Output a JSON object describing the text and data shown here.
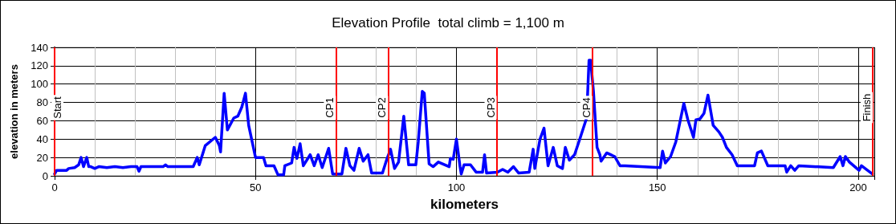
{
  "chart_data": {
    "type": "line",
    "title": "Elevation Profile  total climb = 1,100 m",
    "xlabel": "kilometers",
    "ylabel": "elevation in meters",
    "xlim": [
      0,
      204
    ],
    "xticks": [
      0,
      50,
      100,
      150,
      200
    ],
    "ylim": [
      0,
      140
    ],
    "yticks": [
      0,
      20,
      40,
      60,
      80,
      100,
      120,
      140
    ],
    "grid": true,
    "marker": "none",
    "line_style": "solid",
    "series": [
      {
        "color": "#0000ff",
        "x": [
          0,
          0.5,
          3,
          3.5,
          5,
          6,
          6.6,
          7.2,
          8,
          8.5,
          9,
          10,
          11,
          13,
          15,
          17,
          19,
          20.5,
          21,
          21.5,
          27,
          27.6,
          28.2,
          34.5,
          35.5,
          36,
          37.5,
          40,
          41,
          41.3,
          42.2,
          43,
          44.6,
          45.6,
          46.6,
          47.5,
          48.3,
          50,
          52,
          52.6,
          54.6,
          55.6,
          57,
          57.3,
          59,
          59.6,
          60.3,
          61.1,
          61.9,
          63.6,
          64.6,
          65.6,
          66.6,
          68.2,
          69.2,
          71.5,
          72.5,
          73.5,
          74.5,
          75.8,
          76.8,
          78,
          78.9,
          81.6,
          82.6,
          83.6,
          84.6,
          85.6,
          86.9,
          88.1,
          89.9,
          90.5,
          91.5,
          92,
          93.2,
          94.2,
          95.5,
          98.2,
          98.5,
          99.2,
          100,
          100.9,
          101.2,
          101.9,
          103.5,
          104.9,
          106.5,
          107,
          107.5,
          110.2,
          111.5,
          112.8,
          114.2,
          115.5,
          118.1,
          119.1,
          119.5,
          120.8,
          121.8,
          122.8,
          124.1,
          125.1,
          126.4,
          127.1,
          128.1,
          129.4,
          130.7,
          132.4,
          133,
          133.4,
          134.1,
          135,
          135.7,
          136,
          137.4,
          139.4,
          140.7,
          142,
          150.7,
          151.3,
          152,
          153.3,
          154.6,
          156.6,
          157.6,
          159,
          159.6,
          160.6,
          161.6,
          162.6,
          163.9,
          165.3,
          166.2,
          167.2,
          168.6,
          169.9,
          174.2,
          174.9,
          175.9,
          177.5,
          181.8,
          182.2,
          183.2,
          184.2,
          185.2,
          193.8,
          195.5,
          196.2,
          196.8,
          197.8,
          200.2,
          200.8,
          203.5
        ],
        "values": [
          2,
          6,
          6,
          8,
          9,
          12,
          20,
          10,
          20,
          10,
          10,
          8,
          10,
          9,
          10,
          9,
          10,
          10,
          5,
          10,
          10,
          12,
          10,
          10,
          20,
          12,
          33,
          42,
          33,
          26,
          90,
          50,
          63,
          65,
          75,
          90,
          55,
          20,
          20,
          11,
          11,
          1,
          1,
          11,
          14,
          31,
          19,
          35,
          11,
          23,
          11,
          23,
          9,
          30,
          2,
          2,
          30,
          11,
          6,
          30,
          16,
          23,
          3,
          3,
          17,
          29,
          8,
          15,
          65,
          12,
          12,
          37,
          92,
          90,
          13,
          10,
          15,
          10,
          19,
          18,
          40,
          10,
          2,
          12,
          12,
          4,
          4,
          23,
          3,
          4,
          7,
          4,
          10,
          3,
          4,
          29,
          8,
          40,
          52,
          11,
          31,
          11,
          8,
          31,
          17,
          23,
          40,
          63,
          126,
          126,
          92,
          31,
          23,
          16,
          25,
          21,
          11,
          11,
          9,
          27,
          14,
          21,
          37,
          79,
          61,
          42,
          61,
          62,
          68,
          88,
          55,
          48,
          42,
          31,
          23,
          11,
          11,
          25,
          27,
          11,
          11,
          4,
          11,
          6,
          11,
          9,
          21,
          11,
          21,
          15,
          6,
          11,
          2
        ]
      }
    ],
    "ref_lines": [
      {
        "axis": "x",
        "value": 0,
        "label": "Start",
        "color": "#ff0000"
      },
      {
        "axis": "x",
        "value": 70,
        "label": "CP1",
        "color": "#ff0000"
      },
      {
        "axis": "x",
        "value": 83,
        "label": "CP2",
        "color": "#ff0000"
      },
      {
        "axis": "x",
        "value": 110,
        "label": "CP3",
        "color": "#ff0000"
      },
      {
        "axis": "x",
        "value": 133.8,
        "label": "CP4",
        "color": "#ff0000"
      },
      {
        "axis": "x",
        "value": 203.6,
        "label": "Finish",
        "color": "#ff0000"
      }
    ]
  }
}
